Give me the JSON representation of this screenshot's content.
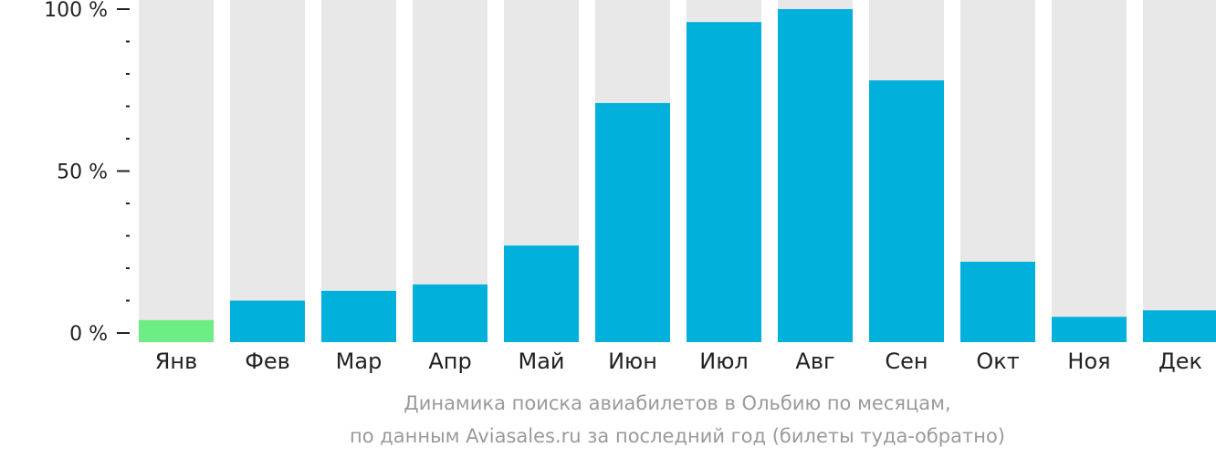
{
  "chart_data": {
    "type": "bar",
    "categories": [
      "Янв",
      "Фев",
      "Мар",
      "Апр",
      "Май",
      "Июн",
      "Июл",
      "Авг",
      "Сен",
      "Окт",
      "Ноя",
      "Дек"
    ],
    "values": [
      4,
      10,
      13,
      15,
      27,
      71,
      96,
      100,
      78,
      22,
      5,
      7
    ],
    "ylim": [
      0,
      100
    ],
    "yticks": [
      {
        "value": 0,
        "label": "0 %"
      },
      {
        "value": 50,
        "label": "50 %"
      },
      {
        "value": 100,
        "label": "100 %"
      }
    ],
    "minor_tick_step": 10,
    "highlight_index": 0,
    "colors": {
      "bar": "#02b0dc",
      "highlight": "#6ded83",
      "background_bar": "#e8e8e8",
      "axis": "#222222"
    },
    "caption_line1": "Динамика поиска авиабилетов в Ольбию по месяцам,",
    "caption_line2": "по данным Aviasales.ru за последний год (билеты туда-обратно)"
  }
}
